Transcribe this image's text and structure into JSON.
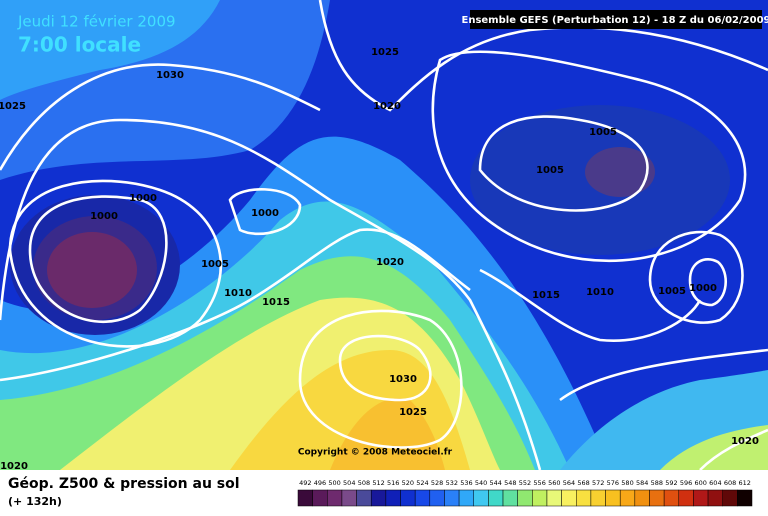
{
  "header": {
    "date": "Jeudi 12 février 2009",
    "time": "7:00 locale",
    "model": "Ensemble GEFS (Perturbation 12)  -  18 Z du 06/02/2009"
  },
  "copyright": "Copyright © 2008 Meteociel.fr",
  "footer": {
    "title": "Géop. Z500 & pression au sol",
    "lead": "(+ 132h)"
  },
  "isobar_labels": [
    "1025",
    "1030",
    "1025",
    "1020",
    "1005",
    "1005",
    "1000",
    "1000",
    "1000",
    "1020",
    "1005",
    "1010",
    "1015",
    "1015",
    "1010",
    "1005",
    "1000",
    "1030",
    "1025",
    "1020",
    "1020"
  ],
  "scale": {
    "labels": [
      "492",
      "496",
      "500",
      "504",
      "508",
      "512",
      "516",
      "520",
      "524",
      "528",
      "532",
      "536",
      "540",
      "544",
      "548",
      "552",
      "556",
      "560",
      "564",
      "568",
      "572",
      "576",
      "580",
      "584",
      "588",
      "592",
      "596",
      "600",
      "604",
      "608",
      "612"
    ],
    "colors": [
      "#3a0a3a",
      "#5a1a5a",
      "#6e2a6e",
      "#7a4a8a",
      "#4a4a9a",
      "#18189a",
      "#1020b8",
      "#1030d0",
      "#1848e8",
      "#2060f0",
      "#2a80f8",
      "#30a8f8",
      "#40c8f0",
      "#40d8c8",
      "#60e0a0",
      "#90e870",
      "#c0f060",
      "#e8f878",
      "#f8f060",
      "#f8e040",
      "#f8d030",
      "#f8c020",
      "#f8a818",
      "#f09010",
      "#e87010",
      "#e05010",
      "#d03010",
      "#b01818",
      "#901010",
      "#600808",
      "#100000"
    ]
  }
}
